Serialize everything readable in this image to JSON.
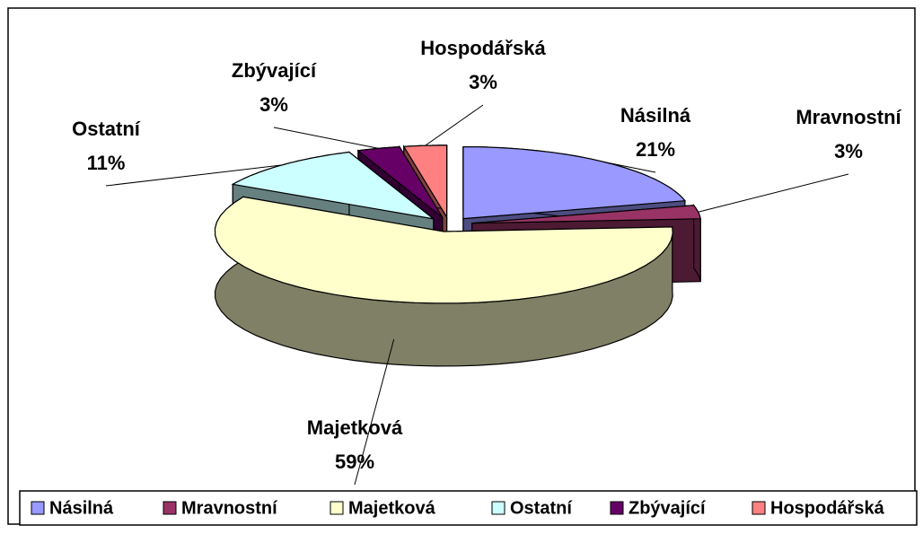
{
  "chart_data": {
    "type": "pie3d",
    "categories": [
      "Násilná",
      "Mravnostní",
      "Majetková",
      "Ostatní",
      "Zbývající",
      "Hospodářská"
    ],
    "values": [
      21,
      3,
      59,
      11,
      3,
      3
    ],
    "value_labels": [
      "21%",
      "3%",
      "59%",
      "11%",
      "3%",
      "3%"
    ],
    "colors": [
      "#9999ff",
      "#993366",
      "#ffffcc",
      "#ccffff",
      "#660066",
      "#ff8080"
    ],
    "legend": "bottom"
  }
}
